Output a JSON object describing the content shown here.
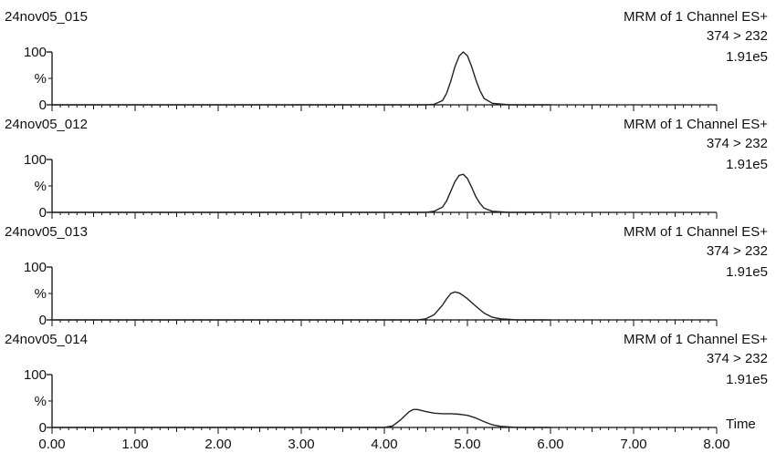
{
  "chart_data": {
    "type": "line",
    "xlabel": "Time",
    "xlim": [
      0,
      8
    ],
    "x_ticks": [
      "0.00",
      "1.00",
      "2.00",
      "3.00",
      "4.00",
      "5.00",
      "6.00",
      "7.00",
      "8.00"
    ],
    "ylim": [
      0,
      100
    ],
    "y_ticks": [
      "0",
      "%",
      "100"
    ],
    "colors": {
      "trace": "#222222",
      "axis": "#111111"
    },
    "panels": [
      {
        "sample": "24nov05_015",
        "method": "MRM of 1 Channel ES+",
        "transition": "374 > 232",
        "intensity": "1.91e5",
        "x": [
          0.0,
          1.0,
          2.0,
          3.0,
          4.0,
          4.5,
          4.6,
          4.7,
          4.75,
          4.8,
          4.85,
          4.9,
          4.95,
          5.0,
          5.05,
          5.1,
          5.15,
          5.2,
          5.3,
          5.5,
          6.0
        ],
        "y": [
          0,
          0,
          0,
          0,
          0,
          0,
          1,
          8,
          22,
          45,
          72,
          92,
          100,
          93,
          73,
          48,
          27,
          12,
          3,
          0,
          0
        ]
      },
      {
        "sample": "24nov05_012",
        "method": "MRM of 1 Channel ES+",
        "transition": "374 > 232",
        "intensity": "1.91e5",
        "x": [
          0.0,
          1.0,
          2.0,
          3.0,
          4.0,
          4.5,
          4.6,
          4.7,
          4.75,
          4.8,
          4.85,
          4.9,
          4.95,
          5.0,
          5.05,
          5.1,
          5.15,
          5.2,
          5.3,
          5.5,
          6.0
        ],
        "y": [
          0,
          0,
          0,
          0,
          0,
          0,
          2,
          10,
          22,
          40,
          58,
          70,
          72,
          64,
          48,
          30,
          17,
          8,
          2,
          0,
          0
        ]
      },
      {
        "sample": "24nov05_013",
        "method": "MRM of 1 Channel ES+",
        "transition": "374 > 232",
        "intensity": "1.91e5",
        "x": [
          0.0,
          1.0,
          2.0,
          3.0,
          4.0,
          4.4,
          4.5,
          4.6,
          4.7,
          4.75,
          4.8,
          4.85,
          4.9,
          4.95,
          5.0,
          5.1,
          5.2,
          5.3,
          5.4,
          5.6,
          6.0
        ],
        "y": [
          0,
          0,
          0,
          0,
          0,
          0,
          2,
          10,
          28,
          40,
          50,
          53,
          51,
          46,
          40,
          26,
          13,
          5,
          2,
          0,
          0
        ]
      },
      {
        "sample": "24nov05_014",
        "method": "MRM of 1 Channel ES+",
        "transition": "374 > 232",
        "intensity": "1.91e5",
        "x": [
          0.0,
          1.0,
          2.0,
          3.0,
          4.0,
          4.1,
          4.2,
          4.3,
          4.35,
          4.4,
          4.5,
          4.6,
          4.7,
          4.8,
          4.9,
          5.0,
          5.1,
          5.2,
          5.3,
          5.4,
          5.6,
          6.0
        ],
        "y": [
          0,
          0,
          0,
          0,
          0,
          3,
          15,
          30,
          34,
          34,
          30,
          27,
          26,
          26,
          25,
          23,
          18,
          11,
          5,
          2,
          0,
          0
        ]
      }
    ]
  }
}
